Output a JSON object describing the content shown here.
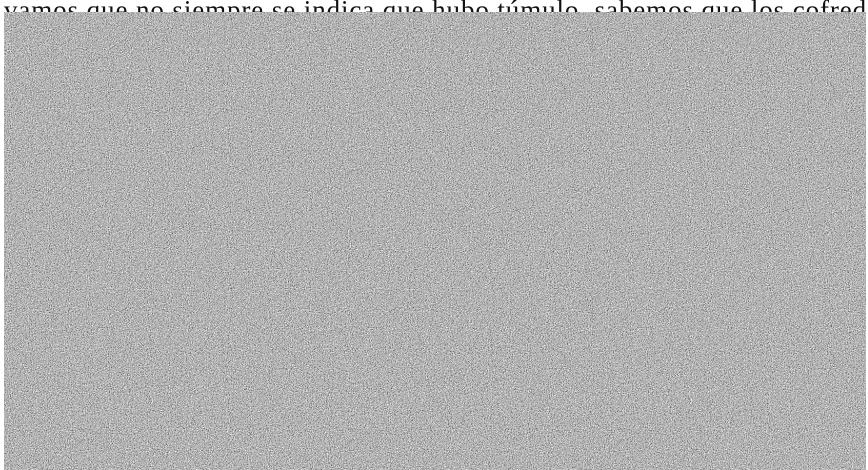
{
  "document": {
    "visible_text": "vamos que no siempre se indica que hubo túmulo, sabemos que los cofredáneos"
  },
  "colors": {
    "background": "#ffffff",
    "text": "#111111",
    "noise_dark": "#2a2a2a",
    "noise_light": "#d0d0d0"
  }
}
